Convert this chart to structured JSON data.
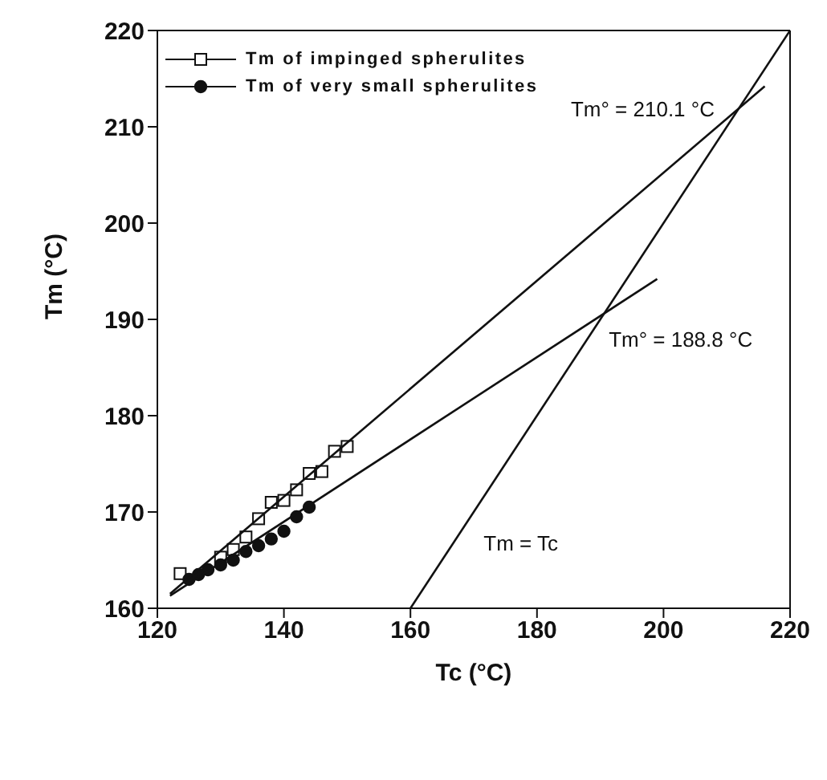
{
  "chart_data": {
    "type": "scatter",
    "xlabel": "Tc (°C)",
    "ylabel": "Tm (°C)",
    "xlim": [
      120,
      220
    ],
    "ylim": [
      160,
      220
    ],
    "xticks": [
      120,
      140,
      160,
      180,
      200,
      220
    ],
    "yticks": [
      160,
      170,
      180,
      190,
      200,
      210,
      220
    ],
    "legend": "top left",
    "series": [
      {
        "name": "Tm of impinged spherulites",
        "color": "#111111",
        "marker": "square",
        "x": [
          123.6,
          128,
          130,
          132,
          134,
          136,
          138,
          140,
          142,
          144,
          146,
          148,
          150
        ],
        "values": [
          163.6,
          null,
          165.3,
          166.1,
          167.4,
          169.3,
          171.0,
          171.2,
          172.3,
          174.0,
          174.2,
          176.3,
          176.8
        ]
      },
      {
        "name": "Tm of very small spherulites",
        "color": "#111111",
        "marker": "circle",
        "x": [
          125,
          126.5,
          128,
          130,
          132,
          134,
          136,
          138,
          140,
          142,
          144
        ],
        "values": [
          163.0,
          163.5,
          164.0,
          164.5,
          165.0,
          165.9,
          166.5,
          167.2,
          168.0,
          169.5,
          170.5
        ]
      },
      {
        "type": "line",
        "color": "#111111",
        "marker": "none",
        "x": [
          122,
          216
        ],
        "values": [
          161.5,
          214.2
        ]
      },
      {
        "type": "line",
        "color": "#111111",
        "marker": "none",
        "x": [
          122,
          199
        ],
        "values": [
          161.3,
          194.2
        ]
      },
      {
        "type": "line",
        "color": "#111111",
        "marker": "none",
        "x": [
          160,
          220
        ],
        "values": [
          160,
          220
        ]
      }
    ],
    "annotations": [
      {
        "text": "Tm° = 210.1 °C",
        "x": 210.1,
        "y": 210.1
      },
      {
        "text": "Tm° = 188.8 °C",
        "x": 188.8,
        "y": 188.8
      },
      {
        "text": "Tm = Tc",
        "x": 167,
        "y": 167
      }
    ]
  }
}
